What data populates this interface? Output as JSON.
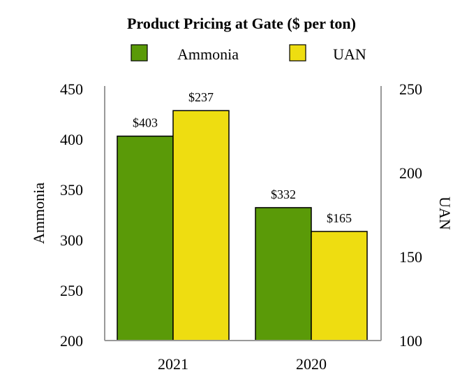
{
  "chart_data": {
    "type": "bar",
    "title": "Product Pricing at Gate ($ per ton)",
    "categories": [
      "2021",
      "2020"
    ],
    "series": [
      {
        "name": "Ammonia",
        "axis": "left",
        "color": "#5a9a08",
        "values": [
          403,
          332
        ],
        "labels": [
          "$403",
          "$332"
        ]
      },
      {
        "name": "UAN",
        "axis": "right",
        "color": "#eedd11",
        "values": [
          237,
          165
        ],
        "labels": [
          "$237",
          "$165"
        ]
      }
    ],
    "ylabel": "Ammonia",
    "y2label": "UAN",
    "ylim": [
      200,
      450
    ],
    "yticks": [
      "450",
      "400",
      "350",
      "300",
      "250",
      "200"
    ],
    "y2lim": [
      100,
      250
    ],
    "y2ticks": [
      "250",
      "200",
      "150",
      "100"
    ],
    "legend_position": "top",
    "grid": false,
    "axis_color": "#999999"
  }
}
